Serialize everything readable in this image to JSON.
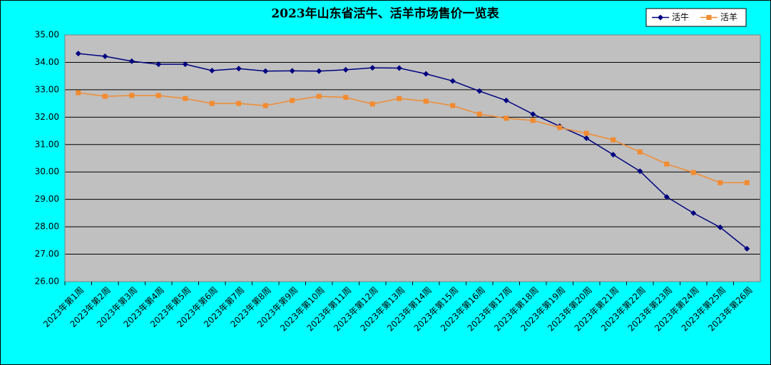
{
  "chart_data": {
    "type": "line",
    "title": "2023年山东省活牛、活羊市场售价一览表",
    "categories": [
      "2023年第1周",
      "2023年第2周",
      "2023年第3周",
      "2023年第4周",
      "2023年第5周",
      "2023年第6周",
      "2023年第7周",
      "2023年第8周",
      "2023年第9周",
      "2023年第10周",
      "2023年第11周",
      "2023年第12周",
      "2023年第13周",
      "2023年第14周",
      "2023年第15周",
      "2023年第16周",
      "2023年第17周",
      "2023年第18周",
      "2023年第19周",
      "2023年第20周",
      "2023年第21周",
      "2023年第22周",
      "2023年第23周",
      "2023年第24周",
      "2023年第25周",
      "2023年第26周"
    ],
    "series": [
      {
        "name": "活牛",
        "color": "#000080",
        "marker": "diamond",
        "values": [
          34.32,
          34.22,
          34.04,
          33.93,
          33.93,
          33.7,
          33.77,
          33.68,
          33.69,
          33.68,
          33.73,
          33.8,
          33.79,
          33.58,
          33.32,
          32.95,
          32.61,
          32.11,
          31.67,
          31.23,
          30.63,
          30.03,
          29.09,
          28.5,
          27.98,
          27.2
        ]
      },
      {
        "name": "活羊",
        "color": "#f28b30",
        "marker": "square",
        "values": [
          32.89,
          32.76,
          32.79,
          32.79,
          32.68,
          32.5,
          32.5,
          32.42,
          32.61,
          32.76,
          32.72,
          32.48,
          32.68,
          32.58,
          32.42,
          32.11,
          31.96,
          31.88,
          31.62,
          31.41,
          31.17,
          30.73,
          30.29,
          29.98,
          29.61,
          29.61
        ]
      }
    ],
    "ylim": [
      26,
      35
    ],
    "yticks": [
      {
        "value": 26,
        "label": "26.00"
      },
      {
        "value": 27,
        "label": "27.00"
      },
      {
        "value": 28,
        "label": "28.00"
      },
      {
        "value": 29,
        "label": "29.00"
      },
      {
        "value": 30,
        "label": "30.00"
      },
      {
        "value": 31,
        "label": "31.00"
      },
      {
        "value": 32,
        "label": "32.00"
      },
      {
        "value": 33,
        "label": "33.00"
      },
      {
        "value": 34,
        "label": "34.00"
      },
      {
        "value": 35,
        "label": "35.00"
      }
    ],
    "grid": true,
    "legend": "top-right"
  }
}
